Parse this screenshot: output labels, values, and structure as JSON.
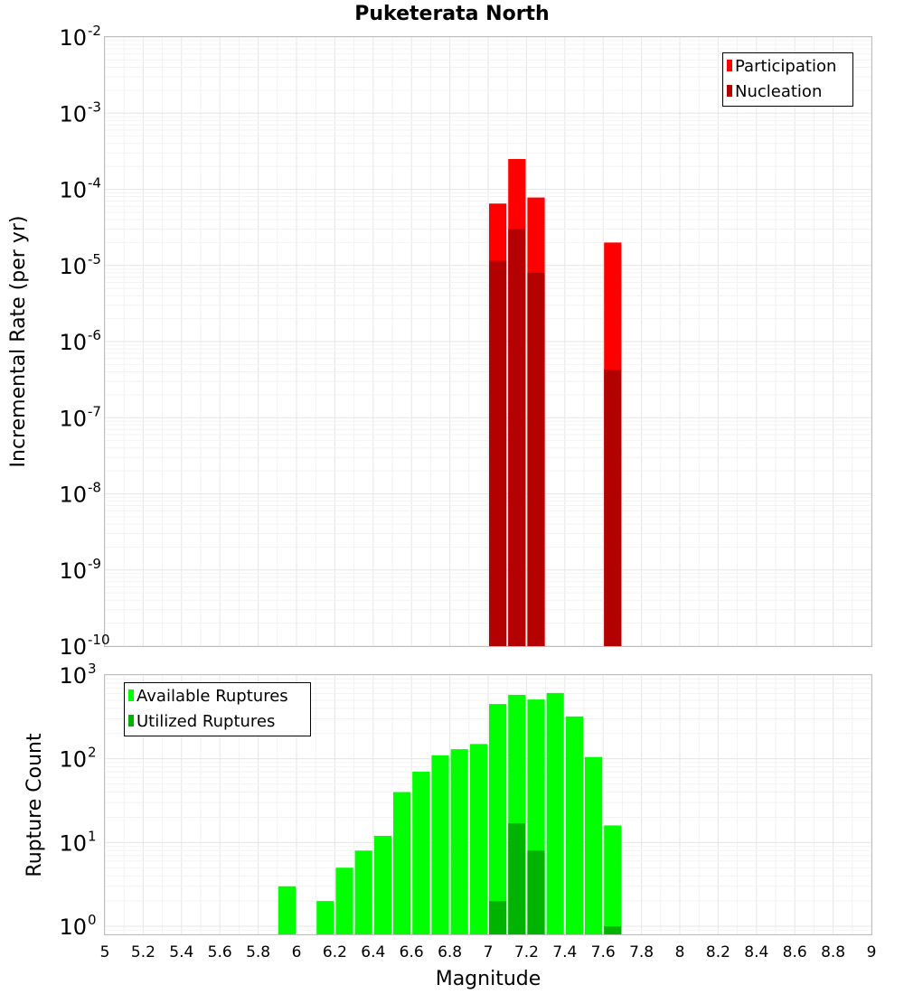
{
  "chart_data": [
    {
      "type": "bar",
      "panel": "top",
      "title": "Puketerata North",
      "xlabel": "",
      "ylabel": "Incremental Rate (per yr)",
      "yscale": "log",
      "ylim": [
        1e-10,
        0.01
      ],
      "xlim": [
        5,
        9
      ],
      "bin_width": 0.1,
      "y_ticks": [
        {
          "base": "10",
          "exp": "-10"
        },
        {
          "base": "10",
          "exp": "-9"
        },
        {
          "base": "10",
          "exp": "-8"
        },
        {
          "base": "10",
          "exp": "-7"
        },
        {
          "base": "10",
          "exp": "-6"
        },
        {
          "base": "10",
          "exp": "-5"
        },
        {
          "base": "10",
          "exp": "-4"
        },
        {
          "base": "10",
          "exp": "-3"
        },
        {
          "base": "10",
          "exp": "-2"
        }
      ],
      "legend_position": "top-right",
      "series": [
        {
          "name": "Participation",
          "color": "#ff0000",
          "x": [
            7.05,
            7.15,
            7.25,
            7.65
          ],
          "values": [
            6.5e-05,
            0.00025,
            7.8e-05,
            2e-05
          ]
        },
        {
          "name": "Nucleation",
          "color": "#b30000",
          "x": [
            7.05,
            7.15,
            7.25,
            7.65
          ],
          "values": [
            1.15e-05,
            3e-05,
            8e-06,
            4.3e-07
          ]
        }
      ]
    },
    {
      "type": "bar",
      "panel": "bottom",
      "title": "",
      "xlabel": "Magnitude",
      "ylabel": "Rupture Count",
      "yscale": "log",
      "ylim": [
        0.8,
        1000
      ],
      "xlim": [
        5,
        9
      ],
      "bin_width": 0.1,
      "y_ticks": [
        {
          "value": 1,
          "base": "10",
          "exp": "0"
        },
        {
          "value": 10,
          "base": "10",
          "exp": "1"
        },
        {
          "value": 100,
          "base": "10",
          "exp": "2"
        },
        {
          "value": 1000,
          "base": "10",
          "exp": "3"
        }
      ],
      "x_ticks": [
        "5",
        "5.2",
        "5.4",
        "5.6",
        "5.8",
        "6",
        "6.2",
        "6.4",
        "6.6",
        "6.8",
        "7",
        "7.2",
        "7.4",
        "7.6",
        "7.8",
        "8",
        "8.2",
        "8.4",
        "8.6",
        "8.8",
        "9"
      ],
      "legend_position": "top-left",
      "series": [
        {
          "name": "Available Ruptures",
          "color": "#00ff00",
          "x": [
            5.95,
            6.15,
            6.25,
            6.35,
            6.45,
            6.55,
            6.65,
            6.75,
            6.85,
            6.95,
            7.05,
            7.15,
            7.25,
            7.35,
            7.45,
            7.55,
            7.65
          ],
          "values": [
            3,
            2,
            5,
            8,
            12,
            40,
            70,
            110,
            130,
            150,
            450,
            580,
            510,
            610,
            320,
            105,
            16
          ]
        },
        {
          "name": "Utilized Ruptures",
          "color": "#00b300",
          "x": [
            7.05,
            7.15,
            7.25,
            7.65
          ],
          "values": [
            2,
            17,
            8,
            1
          ]
        }
      ]
    }
  ]
}
